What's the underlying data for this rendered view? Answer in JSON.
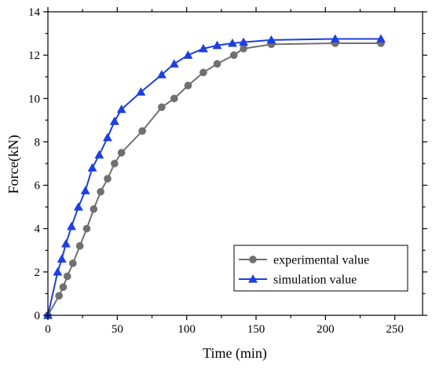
{
  "chart_data": {
    "type": "line",
    "title": "",
    "xlabel": "Time (min)",
    "ylabel": "Force(kN)",
    "xlim": [
      0,
      270
    ],
    "ylim": [
      0,
      14
    ],
    "xticks": [
      0,
      50,
      100,
      150,
      200,
      250
    ],
    "yticks": [
      0,
      2,
      4,
      6,
      8,
      10,
      12,
      14
    ],
    "legend_position": "bottom-right",
    "grid": false,
    "series": [
      {
        "name": "experimental value",
        "color": "#707070",
        "marker": "circle",
        "x": [
          0,
          8,
          11,
          14,
          18,
          23,
          28,
          33,
          38,
          43,
          48,
          53,
          68,
          82,
          91,
          101,
          112,
          122,
          134,
          141,
          161,
          207,
          240
        ],
        "y": [
          0,
          0.9,
          1.3,
          1.8,
          2.4,
          3.2,
          4.0,
          4.9,
          5.7,
          6.3,
          7.0,
          7.5,
          8.5,
          9.6,
          10.0,
          10.6,
          11.2,
          11.6,
          12.0,
          12.3,
          12.5,
          12.55,
          12.55
        ]
      },
      {
        "name": "simulation value",
        "color": "#1d3fe0",
        "marker": "triangle",
        "x": [
          0,
          7,
          10,
          13,
          17,
          22,
          27,
          32,
          37,
          43,
          48,
          53,
          67,
          82,
          91,
          101,
          112,
          122,
          133,
          141,
          161,
          207,
          240
        ],
        "y": [
          0,
          2.0,
          2.6,
          3.3,
          4.1,
          5.0,
          5.75,
          6.8,
          7.4,
          8.2,
          8.95,
          9.5,
          10.3,
          11.1,
          11.6,
          12.0,
          12.3,
          12.45,
          12.55,
          12.6,
          12.7,
          12.75,
          12.75
        ]
      }
    ]
  }
}
